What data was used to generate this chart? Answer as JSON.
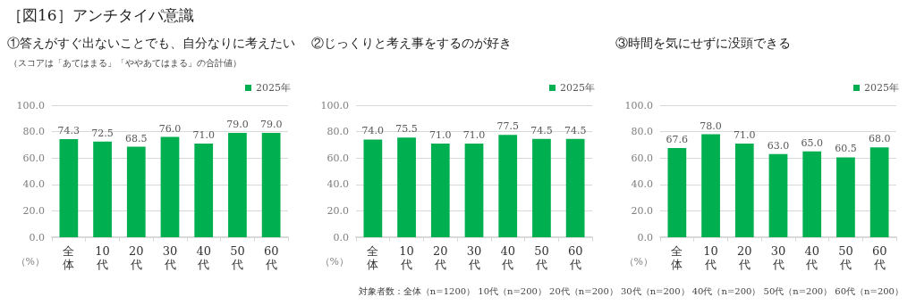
{
  "chart_data": [
    {
      "type": "bar",
      "title": "①答えがすぐ出ないことでも、自分なりに考えたい",
      "subtitle": "（スコアは「あてはまる」「ややあてはまる」の合計値）",
      "ylabel": "（%）",
      "annotations": [
        "［図16］アンチタイパ意識"
      ],
      "categories": [
        "全体",
        "10代",
        "20代",
        "30代",
        "40代",
        "50代",
        "60代"
      ],
      "series": [
        {
          "name": "2025年",
          "color": "#00b050",
          "values": [
            74.3,
            72.5,
            68.5,
            76.0,
            71.0,
            79.0,
            79.0
          ],
          "value_labels": [
            "74.3",
            "72.5",
            "68.5",
            "76.0",
            "71.0",
            "79.0",
            "79.0"
          ]
        }
      ],
      "ylim": [
        0,
        100
      ],
      "yticks": [
        {
          "value": 0,
          "label": "0.0"
        },
        {
          "value": 20,
          "label": "20.0"
        },
        {
          "value": 40,
          "label": "40.0"
        },
        {
          "value": 60,
          "label": "60.0"
        },
        {
          "value": 80,
          "label": "80.0"
        },
        {
          "value": 100,
          "label": "100.0"
        }
      ],
      "legend": "top right",
      "grid": "y"
    },
    {
      "type": "bar",
      "title": "②じっくりと考え事をするのが好き",
      "ylabel": "（%）",
      "categories": [
        "全体",
        "10代",
        "20代",
        "30代",
        "40代",
        "50代",
        "60代"
      ],
      "series": [
        {
          "name": "2025年",
          "color": "#00b050",
          "values": [
            74.0,
            75.5,
            71.0,
            71.0,
            77.5,
            74.5,
            74.5
          ],
          "value_labels": [
            "74.0",
            "75.5",
            "71.0",
            "71.0",
            "77.5",
            "74.5",
            "74.5"
          ]
        }
      ],
      "ylim": [
        0,
        100
      ],
      "yticks": [
        {
          "value": 0,
          "label": "0.0"
        },
        {
          "value": 20,
          "label": "20.0"
        },
        {
          "value": 40,
          "label": "40.0"
        },
        {
          "value": 60,
          "label": "60.0"
        },
        {
          "value": 80,
          "label": "80.0"
        },
        {
          "value": 100,
          "label": "100.0"
        }
      ],
      "legend": "top right",
      "grid": "y"
    },
    {
      "type": "bar",
      "title": "③時間を気にせずに没頭できる",
      "ylabel": "（%）",
      "annotations": [
        "対象者数：全体（n=1200） 10代（n=200） 20代（n=200） 30代（n=200） 40代（n=200） 50代（n=200） 60代（n=200）"
      ],
      "categories": [
        "全体",
        "10代",
        "20代",
        "30代",
        "40代",
        "50代",
        "60代"
      ],
      "series": [
        {
          "name": "2025年",
          "color": "#00b050",
          "values": [
            67.6,
            78.0,
            71.0,
            63.0,
            65.0,
            60.5,
            68.0
          ],
          "value_labels": [
            "67.6",
            "78.0",
            "71.0",
            "63.0",
            "65.0",
            "60.5",
            "68.0"
          ]
        }
      ],
      "ylim": [
        0,
        100
      ],
      "yticks": [
        {
          "value": 0,
          "label": "0.0"
        },
        {
          "value": 20,
          "label": "20.0"
        },
        {
          "value": 40,
          "label": "40.0"
        },
        {
          "value": 60,
          "label": "60.0"
        },
        {
          "value": 80,
          "label": "80.0"
        },
        {
          "value": 100,
          "label": "100.0"
        }
      ],
      "legend": "top right",
      "grid": "y"
    }
  ]
}
